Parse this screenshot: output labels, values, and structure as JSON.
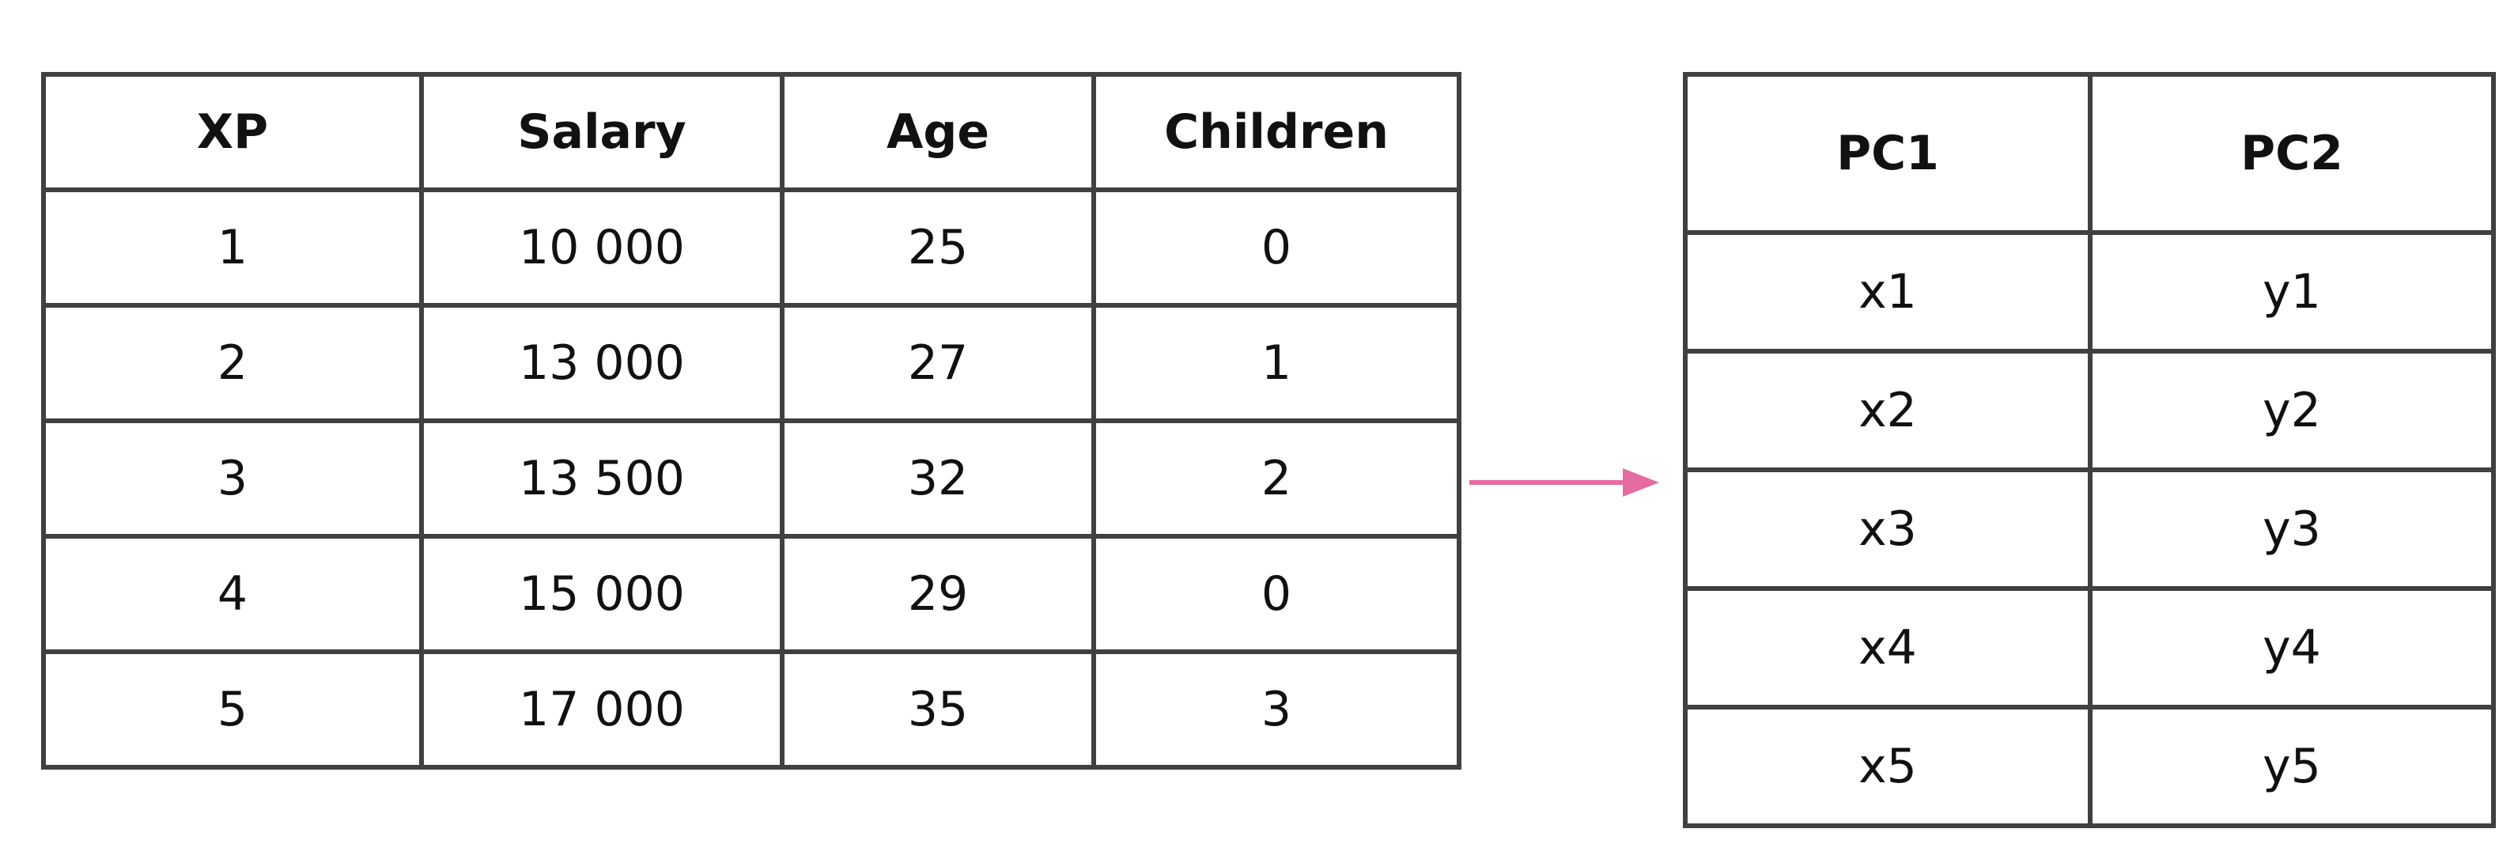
{
  "left_table": {
    "headers": [
      "XP",
      "Salary",
      "Age",
      "Children"
    ],
    "rows": [
      [
        "1",
        "10 000",
        "25",
        "0"
      ],
      [
        "2",
        "13 000",
        "27",
        "1"
      ],
      [
        "3",
        "13 500",
        "32",
        "2"
      ],
      [
        "4",
        "15 000",
        "29",
        "0"
      ],
      [
        "5",
        "17 000",
        "35",
        "3"
      ]
    ]
  },
  "right_table": {
    "headers": [
      "PC1",
      "PC2"
    ],
    "rows": [
      [
        "x1",
        "y1"
      ],
      [
        "x2",
        "y2"
      ],
      [
        "x3",
        "y3"
      ],
      [
        "x4",
        "y4"
      ],
      [
        "x5",
        "y5"
      ]
    ]
  },
  "arrow": {
    "color": "#e76ba0",
    "icon": "arrow-right-icon"
  }
}
